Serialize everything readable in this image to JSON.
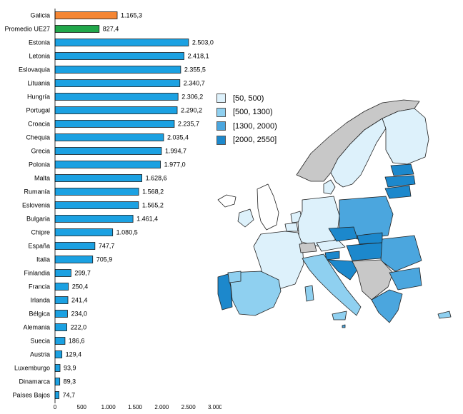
{
  "chart_data": {
    "type": "bar",
    "orientation": "horizontal",
    "categories": [
      "Galicia",
      "Promedio UE27",
      "Estonia",
      "Letonia",
      "Eslovaquia",
      "Lituania",
      "Hungría",
      "Portugal",
      "Croacia",
      "Chequia",
      "Grecia",
      "Polonia",
      "Malta",
      "Rumanía",
      "Eslovenia",
      "Bulgaria",
      "Chipre",
      "España",
      "Italia",
      "Finlandia",
      "Francia",
      "Irlanda",
      "Bélgica",
      "Alemania",
      "Suecia",
      "Austria",
      "Luxemburgo",
      "Dinamarca",
      "Países Bajos"
    ],
    "values": [
      1165.3,
      827.4,
      2503.0,
      2418.1,
      2355.5,
      2340.7,
      2306.2,
      2290.2,
      2235.7,
      2035.4,
      1994.7,
      1977.0,
      1628.6,
      1568.2,
      1565.2,
      1461.4,
      1080.5,
      747.7,
      705.9,
      299.7,
      250.4,
      241.4,
      234.0,
      222.0,
      186.6,
      129.4,
      93.9,
      89.3,
      74.7
    ],
    "value_labels": [
      "1.165,3",
      "827,4",
      "2.503,0",
      "2.418,1",
      "2.355,5",
      "2.340,7",
      "2.306,2",
      "2.290,2",
      "2.235,7",
      "2.035,4",
      "1.994,7",
      "1.977,0",
      "1.628,6",
      "1.568,2",
      "1.565,2",
      "1.461,4",
      "1.080,5",
      "747,7",
      "705,9",
      "299,7",
      "250,4",
      "241,4",
      "234,0",
      "222,0",
      "186,6",
      "129,4",
      "93,9",
      "89,3",
      "74,7"
    ],
    "bar_colors": [
      "#F58634",
      "#21A74A",
      "#1BA1E2",
      "#1BA1E2",
      "#1BA1E2",
      "#1BA1E2",
      "#1BA1E2",
      "#1BA1E2",
      "#1BA1E2",
      "#1BA1E2",
      "#1BA1E2",
      "#1BA1E2",
      "#1BA1E2",
      "#1BA1E2",
      "#1BA1E2",
      "#1BA1E2",
      "#1BA1E2",
      "#1BA1E2",
      "#1BA1E2",
      "#1BA1E2",
      "#1BA1E2",
      "#1BA1E2",
      "#1BA1E2",
      "#1BA1E2",
      "#1BA1E2",
      "#1BA1E2",
      "#1BA1E2",
      "#1BA1E2",
      "#1BA1E2"
    ],
    "xlim": [
      0,
      3000
    ],
    "x_ticks": [
      0,
      500,
      1000,
      1500,
      2000,
      2500,
      3000
    ],
    "x_tick_labels": [
      "0",
      "500",
      "1.000",
      "1.500",
      "2.000",
      "2.500",
      "3.000"
    ],
    "grid": false,
    "title": "",
    "xlabel": "",
    "ylabel": ""
  },
  "map_legend": {
    "placement": "top-left of map",
    "items": [
      {
        "label": "[50, 500)",
        "color": "#DDF1FB"
      },
      {
        "label": "[500, 1300)",
        "color": "#8FD0F0"
      },
      {
        "label": "[1300, 2000)",
        "color": "#4BA6DE"
      },
      {
        "label": "[2000, 2550]",
        "color": "#1C88CC"
      }
    ],
    "no_data_color": "#C8C8C8"
  }
}
